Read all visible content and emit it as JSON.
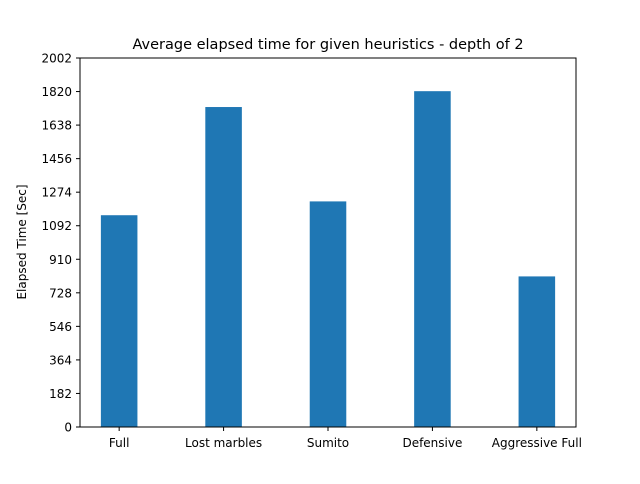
{
  "chart_data": {
    "type": "bar",
    "title": "Average elapsed time for given heuristics - depth of 2",
    "xlabel": "",
    "ylabel": "Elapsed Time [Sec]",
    "categories": [
      "Full",
      "Lost marbles",
      "Sumito",
      "Defensive",
      "Aggressive Full"
    ],
    "values": [
      1149,
      1736,
      1224,
      1822,
      817
    ],
    "yticks": [
      "0",
      "182",
      "364",
      "546",
      "728",
      "910",
      "1092",
      "1274",
      "1456",
      "1638",
      "1820",
      "2002"
    ],
    "ylim": [
      0,
      2002
    ],
    "grid": false,
    "bar_color": "#1f77b4"
  }
}
